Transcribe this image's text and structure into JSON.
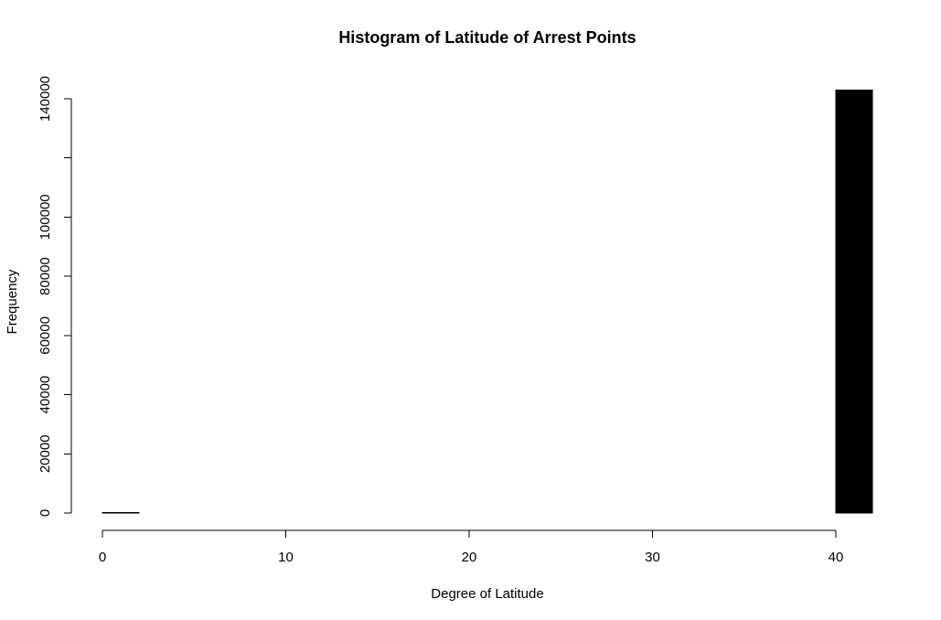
{
  "chart_data": {
    "type": "bar",
    "title": "Histogram of Latitude of Arrest Points",
    "xlabel": "Degree of Latitude",
    "ylabel": "Frequency",
    "xlim": [
      0,
      42
    ],
    "ylim": [
      0,
      140000
    ],
    "x_ticks": [
      0,
      10,
      20,
      30,
      40
    ],
    "y_ticks": [
      0,
      20000,
      40000,
      60000,
      80000,
      100000,
      120000,
      140000
    ],
    "y_tick_labels": [
      "0",
      "20000",
      "40000",
      "60000",
      "80000",
      "100000",
      "",
      "140000"
    ],
    "bins": [
      {
        "start": 0,
        "end": 2,
        "count": 200
      },
      {
        "start": 2,
        "end": 4,
        "count": 0
      },
      {
        "start": 4,
        "end": 6,
        "count": 0
      },
      {
        "start": 6,
        "end": 8,
        "count": 0
      },
      {
        "start": 8,
        "end": 10,
        "count": 0
      },
      {
        "start": 10,
        "end": 12,
        "count": 0
      },
      {
        "start": 12,
        "end": 14,
        "count": 0
      },
      {
        "start": 14,
        "end": 16,
        "count": 0
      },
      {
        "start": 16,
        "end": 18,
        "count": 0
      },
      {
        "start": 18,
        "end": 20,
        "count": 0
      },
      {
        "start": 20,
        "end": 22,
        "count": 0
      },
      {
        "start": 22,
        "end": 24,
        "count": 0
      },
      {
        "start": 24,
        "end": 26,
        "count": 0
      },
      {
        "start": 26,
        "end": 28,
        "count": 0
      },
      {
        "start": 28,
        "end": 30,
        "count": 0
      },
      {
        "start": 30,
        "end": 32,
        "count": 0
      },
      {
        "start": 32,
        "end": 34,
        "count": 0
      },
      {
        "start": 34,
        "end": 36,
        "count": 0
      },
      {
        "start": 36,
        "end": 38,
        "count": 0
      },
      {
        "start": 38,
        "end": 40,
        "count": 0
      },
      {
        "start": 40,
        "end": 42,
        "count": 143000
      }
    ],
    "bar_color": "#000000",
    "grid": false,
    "legend": "none"
  }
}
